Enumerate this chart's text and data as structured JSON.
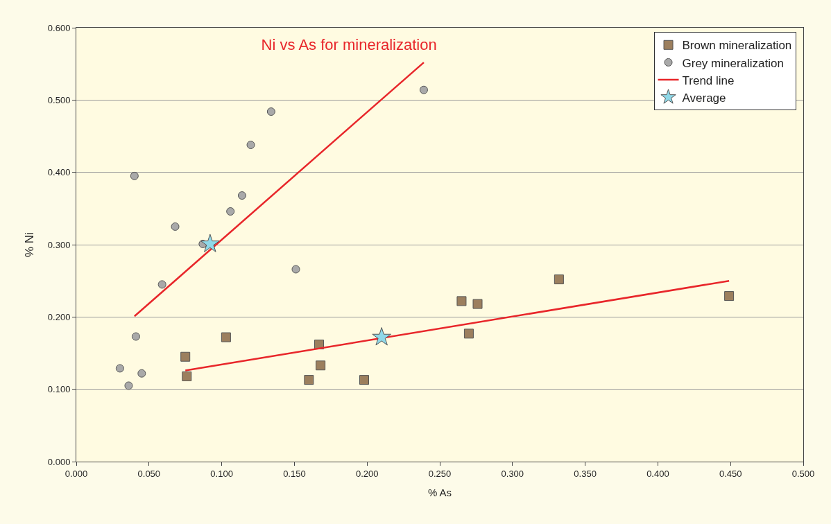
{
  "chart_data": {
    "type": "scatter",
    "title": "Ni vs As for mineralization",
    "xlabel": "% As",
    "ylabel": "% Ni",
    "xlim": [
      0,
      0.5
    ],
    "xticks": [
      {
        "value": 0,
        "label": "0.000"
      },
      {
        "value": 0.05,
        "label": "0.050"
      },
      {
        "value": 0.1,
        "label": "0.100"
      },
      {
        "value": 0.15,
        "label": "0.150"
      },
      {
        "value": 0.2,
        "label": "0.200"
      },
      {
        "value": 0.25,
        "label": "0.250"
      },
      {
        "value": 0.3,
        "label": "0.300"
      },
      {
        "value": 0.35,
        "label": "0.350"
      },
      {
        "value": 0.4,
        "label": "0.400"
      },
      {
        "value": 0.45,
        "label": "0.450"
      },
      {
        "value": 0.5,
        "label": "0.500"
      }
    ],
    "ylim": [
      0,
      0.6
    ],
    "yticks": [
      {
        "value": 0,
        "label": "0.000"
      },
      {
        "value": 0.1,
        "label": "0.100"
      },
      {
        "value": 0.2,
        "label": "0.200"
      },
      {
        "value": 0.3,
        "label": "0.300"
      },
      {
        "value": 0.4,
        "label": "0.400"
      },
      {
        "value": 0.5,
        "label": "0.500"
      },
      {
        "value": 0.6,
        "label": "0.600"
      }
    ],
    "grid": "y",
    "legend": "top right",
    "series": [
      {
        "name": "Brown mineralization",
        "marker": "square",
        "color": "#9c7f5e",
        "x": [
          0.075,
          0.076,
          0.103,
          0.167,
          0.168,
          0.16,
          0.198,
          0.265,
          0.276,
          0.27,
          0.332,
          0.449
        ],
        "values": [
          0.145,
          0.118,
          0.172,
          0.162,
          0.133,
          0.113,
          0.113,
          0.222,
          0.218,
          0.177,
          0.252,
          0.229
        ]
      },
      {
        "name": "Grey mineralization",
        "marker": "circle",
        "color": "#a9a9a9",
        "x": [
          0.04,
          0.068,
          0.059,
          0.087,
          0.106,
          0.114,
          0.12,
          0.134,
          0.151,
          0.041,
          0.03,
          0.036,
          0.045,
          0.239
        ],
        "values": [
          0.395,
          0.325,
          0.245,
          0.301,
          0.346,
          0.368,
          0.438,
          0.484,
          0.266,
          0.173,
          0.129,
          0.105,
          0.122,
          0.514
        ]
      },
      {
        "name": "Trend line",
        "type": "line",
        "marker": "none",
        "color": "#e8262a",
        "x": [
          0.04,
          0.239
        ],
        "values": [
          0.201,
          0.552
        ]
      },
      {
        "type": "line",
        "marker": "none",
        "color": "#e8262a",
        "x": [
          0.075,
          0.449
        ],
        "values": [
          0.126,
          0.25
        ]
      },
      {
        "name": "Average",
        "marker": "star",
        "color": "#8fd8e8",
        "x": [
          0.092,
          0.21
        ],
        "values": [
          0.301,
          0.172
        ]
      }
    ]
  }
}
